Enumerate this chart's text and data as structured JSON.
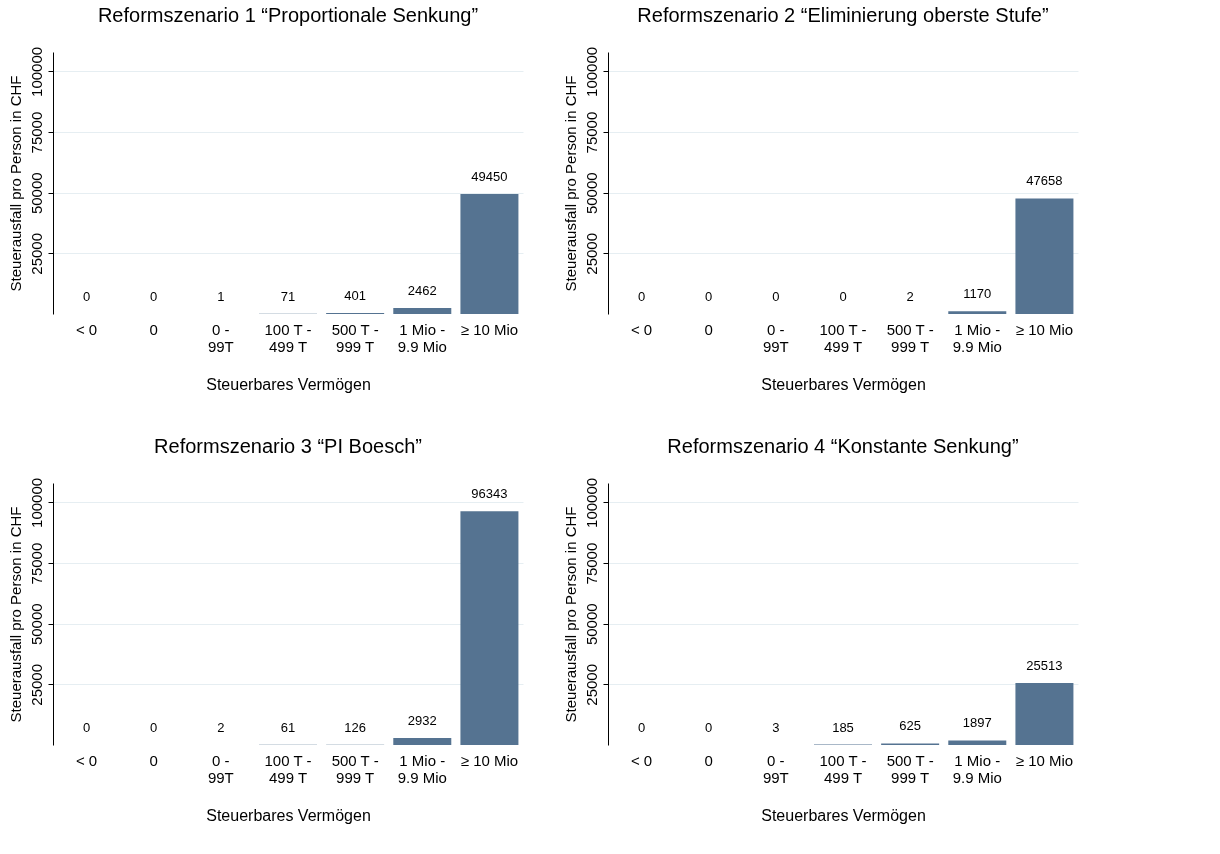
{
  "chart_data": [
    {
      "type": "bar",
      "title": "Reformszenario 1 “Proportionale Senkung”",
      "xlabel": "Steuerbares Vermögen",
      "ylabel": "Steuerausfall pro Person in CHF",
      "categories": [
        "< 0",
        "0",
        "0 -\n99T",
        "100 T -\n499 T",
        "500 T -\n999 T",
        "1 Mio -\n9.9 Mio",
        "≥ 10 Mio"
      ],
      "values": [
        0,
        0,
        1,
        71,
        401,
        2462,
        49450
      ],
      "color": "#557391",
      "ylim": [
        0,
        108000
      ],
      "yticks": [
        25000,
        50000,
        75000,
        100000
      ],
      "grid": "y",
      "data_labels": true
    },
    {
      "type": "bar",
      "title": "Reformszenario 2 “Eliminierung oberste Stufe”",
      "xlabel": "Steuerbares Vermögen",
      "ylabel": "Steuerausfall pro Person in CHF",
      "categories": [
        "< 0",
        "0",
        "0 -\n99T",
        "100 T -\n499 T",
        "500 T -\n999 T",
        "1 Mio -\n9.9 Mio",
        "≥ 10 Mio"
      ],
      "values": [
        0,
        0,
        0,
        0,
        2,
        1170,
        47658
      ],
      "color": "#557391",
      "ylim": [
        0,
        108000
      ],
      "yticks": [
        25000,
        50000,
        75000,
        100000
      ],
      "grid": "y",
      "data_labels": true
    },
    {
      "type": "bar",
      "title": "Reformszenario 3 “PI Boesch”",
      "xlabel": "Steuerbares Vermögen",
      "ylabel": "Steuerausfall pro Person in CHF",
      "categories": [
        "< 0",
        "0",
        "0 -\n99T",
        "100 T -\n499 T",
        "500 T -\n999 T",
        "1 Mio -\n9.9 Mio",
        "≥ 10 Mio"
      ],
      "values": [
        0,
        0,
        2,
        61,
        126,
        2932,
        96343
      ],
      "color": "#557391",
      "ylim": [
        0,
        108000
      ],
      "yticks": [
        25000,
        50000,
        75000,
        100000
      ],
      "grid": "y",
      "data_labels": true
    },
    {
      "type": "bar",
      "title": "Reformszenario 4 “Konstante Senkung”",
      "xlabel": "Steuerbares Vermögen",
      "ylabel": "Steuerausfall pro Person in CHF",
      "categories": [
        "< 0",
        "0",
        "0 -\n99T",
        "100 T -\n499 T",
        "500 T -\n999 T",
        "1 Mio -\n9.9 Mio",
        "≥ 10 Mio"
      ],
      "values": [
        0,
        0,
        3,
        185,
        625,
        1897,
        25513
      ],
      "color": "#557391",
      "ylim": [
        0,
        108000
      ],
      "yticks": [
        25000,
        50000,
        75000,
        100000
      ],
      "grid": "y",
      "data_labels": true
    }
  ]
}
